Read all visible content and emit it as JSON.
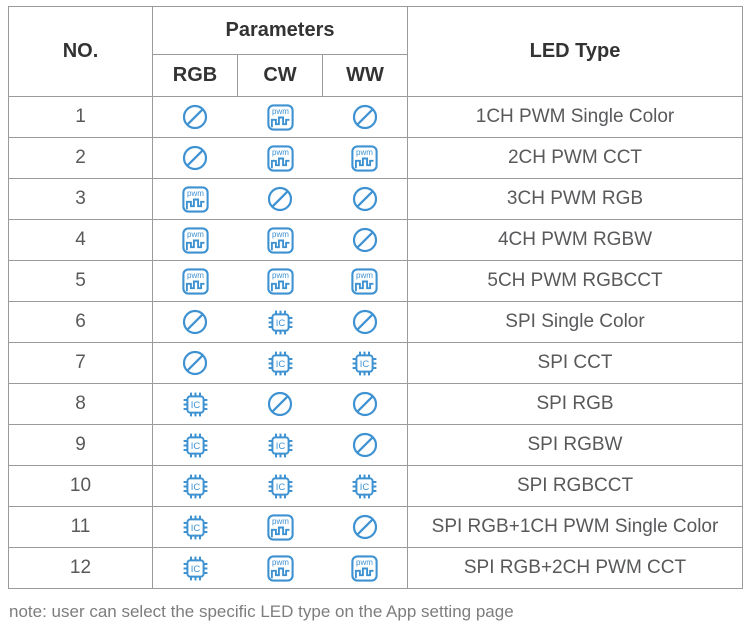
{
  "colors": {
    "icon_blue": "#3E92D2",
    "border": "#9B9B9B",
    "header_text": "#333333",
    "body_text": "#58595B",
    "note_text": "#7D7D7D"
  },
  "table": {
    "header": {
      "no": "NO.",
      "parameters": "Parameters",
      "sub": [
        "RGB",
        "CW",
        "WW"
      ],
      "led_type": "LED Type"
    },
    "icons": {
      "prohibited": "prohibited-icon",
      "pwm": "pwm-icon",
      "ic": "ic-chip-icon"
    },
    "icon_labels": {
      "pwm": "pwm",
      "ic": "IC"
    },
    "rows": [
      {
        "no": "1",
        "cells": [
          "prohibited",
          "pwm",
          "prohibited"
        ],
        "led_type": "1CH PWM Single Color"
      },
      {
        "no": "2",
        "cells": [
          "prohibited",
          "pwm",
          "pwm"
        ],
        "led_type": "2CH PWM CCT"
      },
      {
        "no": "3",
        "cells": [
          "pwm",
          "prohibited",
          "prohibited"
        ],
        "led_type": "3CH PWM RGB"
      },
      {
        "no": "4",
        "cells": [
          "pwm",
          "pwm",
          "prohibited"
        ],
        "led_type": "4CH PWM RGBW"
      },
      {
        "no": "5",
        "cells": [
          "pwm",
          "pwm",
          "pwm"
        ],
        "led_type": "5CH PWM RGBCCT"
      },
      {
        "no": "6",
        "cells": [
          "prohibited",
          "ic",
          "prohibited"
        ],
        "led_type": "SPI Single Color"
      },
      {
        "no": "7",
        "cells": [
          "prohibited",
          "ic",
          "ic"
        ],
        "led_type": "SPI CCT"
      },
      {
        "no": "8",
        "cells": [
          "ic",
          "prohibited",
          "prohibited"
        ],
        "led_type": "SPI RGB"
      },
      {
        "no": "9",
        "cells": [
          "ic",
          "ic",
          "prohibited"
        ],
        "led_type": "SPI RGBW"
      },
      {
        "no": "10",
        "cells": [
          "ic",
          "ic",
          "ic"
        ],
        "led_type": "SPI RGBCCT"
      },
      {
        "no": "11",
        "cells": [
          "ic",
          "pwm",
          "prohibited"
        ],
        "led_type": "SPI RGB+1CH PWM Single Color"
      },
      {
        "no": "12",
        "cells": [
          "ic",
          "pwm",
          "pwm"
        ],
        "led_type": "SPI RGB+2CH PWM CCT"
      }
    ]
  },
  "note": "note: user can select the specific LED type on the App setting page"
}
